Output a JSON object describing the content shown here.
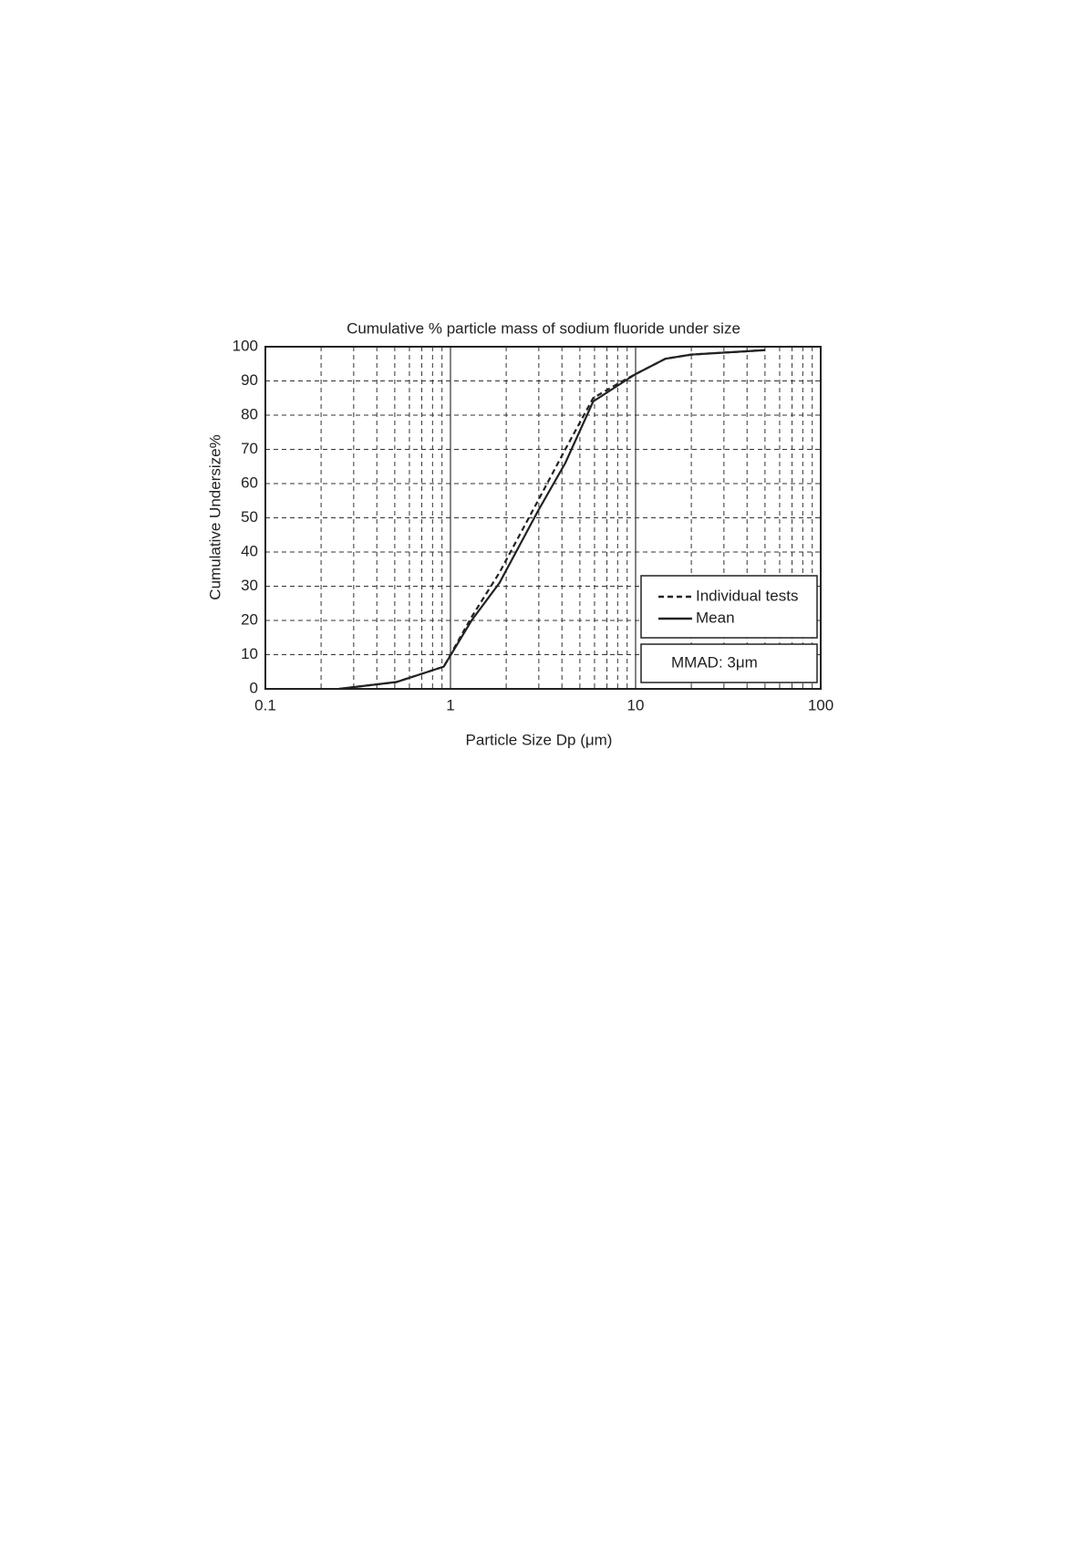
{
  "chart_data": {
    "type": "line",
    "title": "Cumulative % particle mass of sodium fluoride under size",
    "x_label": "Particle Size  Dp (μm)",
    "y_label": "Cumulative Undersize%",
    "x_scale": "log",
    "xlim": [
      0.1,
      100
    ],
    "xticks": [
      0.1,
      1,
      10,
      100
    ],
    "ylim": [
      0,
      100
    ],
    "yticks": [
      0,
      10,
      20,
      30,
      40,
      50,
      60,
      70,
      80,
      90,
      100
    ],
    "grid": true,
    "legend": "lower right",
    "annotation": "MMAD: 3μm",
    "x": [
      0.25,
      0.51,
      0.92,
      1.3,
      1.84,
      2.97,
      4.17,
      5.9,
      8.2,
      10,
      14.5,
      20,
      50
    ],
    "series": [
      {
        "name": "Individual tests",
        "color": "#222222",
        "dash": "dashed",
        "values": [
          0,
          2,
          6.5,
          21,
          34,
          55,
          70,
          85,
          89.5,
          92,
          96.5,
          97.7,
          99
        ]
      },
      {
        "name": "Mean",
        "color": "#222222",
        "dash": "solid",
        "values": [
          0,
          2,
          6.5,
          20,
          31,
          52,
          66,
          84,
          89,
          92,
          96.5,
          97.7,
          99
        ]
      }
    ]
  }
}
